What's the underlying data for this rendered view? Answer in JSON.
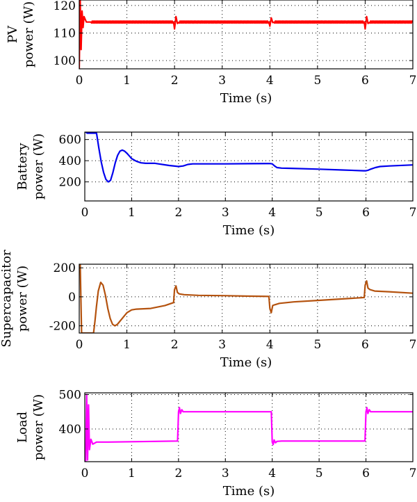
{
  "chart_data": [
    {
      "type": "line",
      "ylabel_lines": [
        "PV",
        "power (W)"
      ],
      "xlabel": "Time (s)",
      "xlim": [
        0,
        7
      ],
      "ylim": [
        97,
        122
      ],
      "xticks": [
        0,
        1,
        2,
        3,
        4,
        5,
        6,
        7
      ],
      "yticks": [
        100,
        110,
        120
      ],
      "grid": true,
      "series": [
        {
          "color": "#ff0000",
          "ripple": 0.35,
          "x": [
            0,
            0.02,
            0.04,
            0.06,
            0.08,
            0.1,
            0.15,
            0.2,
            1.98,
            2.0,
            2.03,
            2.06,
            2.1,
            3.98,
            4.0,
            4.03,
            4.06,
            4.1,
            5.98,
            6.0,
            6.03,
            6.06,
            6.1,
            7
          ],
          "y": [
            97,
            122,
            104,
            118,
            112,
            116,
            114,
            114,
            114,
            111.5,
            116,
            113.5,
            114,
            114,
            112.5,
            115.5,
            113.8,
            114,
            114,
            111.5,
            116,
            113.5,
            114,
            114
          ]
        }
      ]
    },
    {
      "type": "line",
      "ylabel_lines": [
        "Battery",
        "power (W)"
      ],
      "xlabel": "Time (s)",
      "xlim": [
        0,
        7
      ],
      "ylim": [
        20,
        670
      ],
      "xticks": [
        0,
        1,
        2,
        3,
        4,
        5,
        6,
        7
      ],
      "yticks": [
        200,
        400,
        600
      ],
      "grid": true,
      "series": [
        {
          "color": "#0000ee",
          "ripple": 0,
          "x": [
            0.02,
            0.05,
            0.25,
            0.3,
            0.35,
            0.4,
            0.45,
            0.5,
            0.55,
            0.6,
            0.65,
            0.7,
            0.75,
            0.8,
            0.85,
            0.9,
            0.95,
            1.0,
            1.1,
            1.2,
            1.3,
            1.5,
            1.8,
            2.0,
            2.1,
            2.2,
            2.3,
            2.5,
            3.0,
            3.5,
            3.95,
            4.0,
            4.05,
            4.1,
            4.2,
            4.4,
            5.0,
            5.5,
            5.95,
            6.0,
            6.05,
            6.1,
            6.2,
            6.3,
            6.5,
            7.0
          ],
          "y": [
            670,
            660,
            660,
            520,
            390,
            290,
            225,
            200,
            215,
            290,
            380,
            450,
            490,
            500,
            490,
            470,
            445,
            420,
            395,
            380,
            375,
            375,
            355,
            345,
            350,
            365,
            370,
            370,
            370,
            372,
            373,
            370,
            350,
            335,
            330,
            328,
            320,
            312,
            305,
            305,
            310,
            320,
            335,
            345,
            350,
            360
          ]
        }
      ]
    },
    {
      "type": "line",
      "ylabel_lines": [
        "Supercapacitor",
        "power (W)"
      ],
      "xlabel": "Time (s)",
      "xlim": [
        0,
        7
      ],
      "ylim": [
        -250,
        225
      ],
      "xticks": [
        0,
        1,
        2,
        3,
        4,
        5,
        6,
        7
      ],
      "yticks": [
        -200,
        0,
        200
      ],
      "grid": true,
      "series": [
        {
          "color": "#b4520e",
          "ripple": 0,
          "x": [
            0.02,
            0.05,
            0.3,
            0.33,
            0.36,
            0.4,
            0.45,
            0.5,
            0.55,
            0.6,
            0.65,
            0.7,
            0.75,
            0.8,
            0.9,
            1.0,
            1.1,
            1.2,
            1.5,
            1.8,
            1.98,
            2.0,
            2.03,
            2.06,
            2.1,
            2.2,
            2.5,
            3.0,
            3.5,
            3.98,
            4.0,
            4.03,
            4.06,
            4.1,
            4.2,
            4.5,
            5.0,
            5.5,
            5.98,
            6.0,
            6.03,
            6.06,
            6.1,
            6.2,
            6.5,
            7.0
          ],
          "y": [
            225,
            -250,
            -250,
            -170,
            -70,
            40,
            100,
            80,
            10,
            -80,
            -150,
            -190,
            -200,
            -190,
            -150,
            -110,
            -90,
            -85,
            -80,
            -60,
            -40,
            50,
            75,
            30,
            20,
            15,
            10,
            8,
            5,
            3,
            -80,
            -110,
            -60,
            -55,
            -45,
            -35,
            -25,
            -15,
            -5,
            80,
            110,
            60,
            50,
            40,
            35,
            25
          ]
        }
      ]
    },
    {
      "type": "line",
      "ylabel_lines": [
        "Load",
        "power (W)"
      ],
      "xlabel": "Time (s)",
      "xlim": [
        0,
        7
      ],
      "ylim": [
        305,
        505
      ],
      "xticks": [
        0,
        1,
        2,
        3,
        4,
        5,
        6,
        7
      ],
      "yticks": [
        400,
        500
      ],
      "grid": true,
      "series": [
        {
          "color": "#ff00ff",
          "ripple": 0,
          "x": [
            0.02,
            0.04,
            0.06,
            0.08,
            0.1,
            0.13,
            0.17,
            0.25,
            0.5,
            1.0,
            1.5,
            1.98,
            2.0,
            2.02,
            2.04,
            2.07,
            2.1,
            2.2,
            3.98,
            4.0,
            4.02,
            4.04,
            4.07,
            4.1,
            4.2,
            5.98,
            6.0,
            6.02,
            6.04,
            6.07,
            6.1,
            6.2,
            7.0
          ],
          "y": [
            305,
            500,
            310,
            470,
            340,
            370,
            356,
            362,
            362,
            363,
            364,
            365,
            450,
            462,
            445,
            456,
            450,
            450,
            450,
            362,
            355,
            368,
            360,
            364,
            365,
            365,
            450,
            462,
            445,
            456,
            450,
            450,
            450
          ]
        }
      ]
    }
  ]
}
